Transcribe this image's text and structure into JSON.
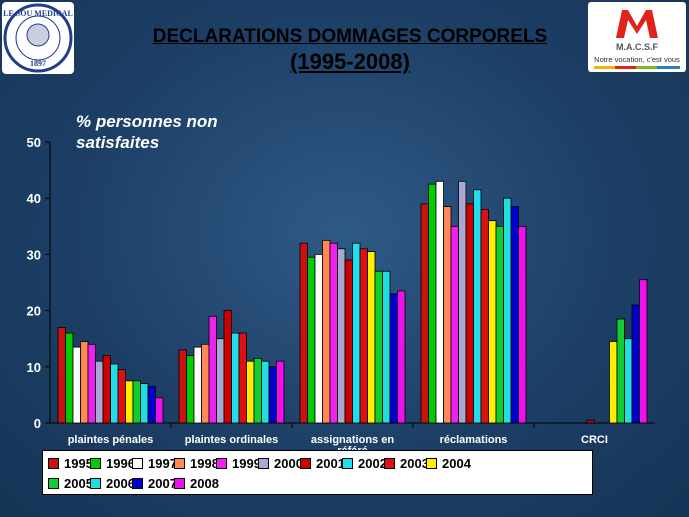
{
  "header": {
    "title": "DECLARATIONS DOMMAGES CORPORELS",
    "subtitle": "(1995-2008)"
  },
  "logos": {
    "left_text": "LE SOU MEDICAL",
    "left_year": "1897",
    "right_brand": "M.A.C.S.F",
    "right_tagline": "Notre vocation, c'est vous"
  },
  "chart_data": {
    "type": "bar",
    "annotation": "% personnes non satisfaites",
    "ylim": [
      0,
      50
    ],
    "yticks": [
      0,
      10,
      20,
      30,
      40,
      50
    ],
    "categories": [
      "plaintes pénales",
      "plaintes ordinales",
      "assignations en référé",
      "réclamations",
      "CRCI"
    ],
    "legend_position": "bottom",
    "series": [
      {
        "name": "1995",
        "color": "#cc1111",
        "values": [
          17,
          13,
          32,
          39,
          null
        ]
      },
      {
        "name": "1996",
        "color": "#00cc00",
        "values": [
          16,
          12,
          29.5,
          42.5,
          null
        ]
      },
      {
        "name": "1997",
        "color": "#ffffff",
        "values": [
          13.5,
          13.5,
          30,
          43,
          null
        ]
      },
      {
        "name": "1998",
        "color": "#ff8855",
        "values": [
          14.5,
          14,
          32.5,
          38.5,
          null
        ]
      },
      {
        "name": "1999",
        "color": "#ee22ee",
        "values": [
          14,
          19,
          32,
          35,
          null
        ]
      },
      {
        "name": "2000",
        "color": "#a8a8d0",
        "values": [
          11,
          15,
          31,
          43,
          null
        ]
      },
      {
        "name": "2001",
        "color": "#cc0000",
        "values": [
          12,
          20,
          29,
          39,
          0.5
        ]
      },
      {
        "name": "2002",
        "color": "#22ddee",
        "values": [
          10.5,
          16,
          32,
          41.5,
          null
        ]
      },
      {
        "name": "2003",
        "color": "#dd1111",
        "values": [
          9.5,
          16,
          31,
          38,
          null
        ]
      },
      {
        "name": "2004",
        "color": "#ffee00",
        "values": [
          7.5,
          11,
          30.5,
          36,
          14.5
        ]
      },
      {
        "name": "2005",
        "color": "#11cc33",
        "values": [
          7.5,
          11.5,
          27,
          35,
          18.5
        ]
      },
      {
        "name": "2006",
        "color": "#22dddd",
        "values": [
          7,
          11,
          27,
          40,
          15
        ]
      },
      {
        "name": "2007",
        "color": "#0000cc",
        "values": [
          6.5,
          10,
          23,
          38.5,
          21
        ]
      },
      {
        "name": "2008",
        "color": "#ee11ee",
        "values": [
          4.5,
          11,
          23.5,
          35,
          25.5
        ]
      }
    ]
  }
}
